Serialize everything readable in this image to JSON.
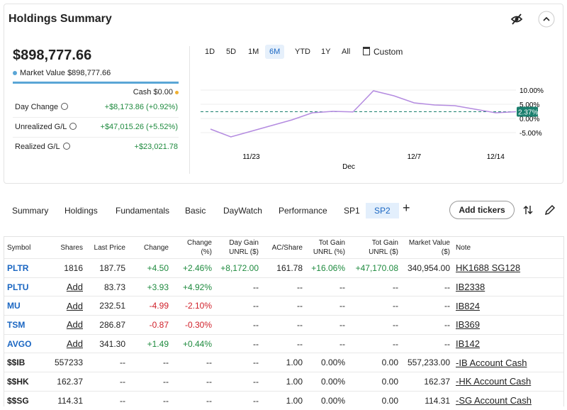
{
  "header": {
    "title": "Holdings Summary"
  },
  "summary": {
    "total": "$898,777.66",
    "market_value_label": "Market Value",
    "market_value": "$898,777.66",
    "cash_label": "Cash",
    "cash": "$0.00",
    "rows": [
      [
        "Day Change",
        "+$8,173.86 (+0.92%)"
      ],
      [
        "Unrealized G/L",
        "+$47,015.26 (+5.52%)"
      ],
      [
        "Realized G/L",
        "+$23,021.78"
      ]
    ]
  },
  "ranges": [
    "1D",
    "5D",
    "1M",
    "6M",
    "YTD",
    "1Y",
    "All",
    "Custom"
  ],
  "selected_range": "6M",
  "chart_data": {
    "type": "line",
    "color": "#b48be0",
    "categories": [
      null,
      null,
      "11/23",
      null,
      null,
      null,
      null,
      null,
      null,
      null,
      "12/7",
      null,
      null,
      null,
      "12/14",
      null
    ],
    "month_label": "Dec",
    "values": [
      -3.75,
      -6.5,
      -4.5,
      -2.5,
      -0.5,
      2,
      2.5,
      2.3,
      9.75,
      8,
      5.5,
      4.75,
      4.5,
      3.25,
      2,
      2.37
    ],
    "ylim": [
      -7.5,
      12.5
    ],
    "yticks": [
      {
        "value": 10,
        "label": "10.00%"
      },
      {
        "value": 5,
        "label": "5.00%"
      },
      {
        "value": 0,
        "label": "0.00%"
      },
      {
        "value": -5,
        "label": "-5.00%"
      }
    ],
    "current": {
      "value": 2.37,
      "label": "2.37%"
    },
    "current_color": "#1a7f6e",
    "grid": true
  },
  "tabs": [
    "Summary",
    "Holdings",
    "Fundamentals",
    "Basic",
    "DayWatch",
    "Performance",
    "SP1",
    "SP2"
  ],
  "active_tab": "SP2",
  "add_tickers": "Add tickers",
  "table": {
    "columns": [
      "Symbol",
      "Shares",
      "Last Price",
      "Change",
      "Change (%)",
      "Day Gain UNRL ($)",
      "AC/Share",
      "Tot Gain UNRL (%)",
      "Tot Gain UNRL ($)",
      "Market Value ($)",
      "Note"
    ],
    "rows": [
      [
        "PLTR",
        "1816",
        "187.75",
        "+4.50",
        "+2.46%",
        "+8,172.00",
        "161.78",
        "+16.06%",
        "+47,170.08",
        "340,954.00",
        "HK1688 SG128"
      ],
      [
        "PLTU",
        "Add",
        "83.73",
        "+3.93",
        "+4.92%",
        "--",
        "--",
        "--",
        "--",
        "--",
        "IB2338"
      ],
      [
        "MU",
        "Add",
        "232.51",
        "-4.99",
        "-2.10%",
        "--",
        "--",
        "--",
        "--",
        "--",
        "IB824"
      ],
      [
        "TSM",
        "Add",
        "286.87",
        "-0.87",
        "-0.30%",
        "--",
        "--",
        "--",
        "--",
        "--",
        "IB369"
      ],
      [
        "AVGO",
        "Add",
        "341.30",
        "+1.49",
        "+0.44%",
        "--",
        "--",
        "--",
        "--",
        "--",
        "IB142"
      ],
      [
        "$$IB",
        "557233",
        "--",
        "--",
        "--",
        "--",
        "1.00",
        "0.00%",
        "0.00",
        "557,233.00",
        "-IB Account Cash"
      ],
      [
        "$$HK",
        "162.37",
        "--",
        "--",
        "--",
        "--",
        "1.00",
        "0.00%",
        "0.00",
        "162.37",
        "-HK Account Cash"
      ],
      [
        "$$SG",
        "114.31",
        "--",
        "--",
        "--",
        "--",
        "1.00",
        "0.00%",
        "0.00",
        "114.31",
        "-SG Account Cash"
      ]
    ]
  }
}
